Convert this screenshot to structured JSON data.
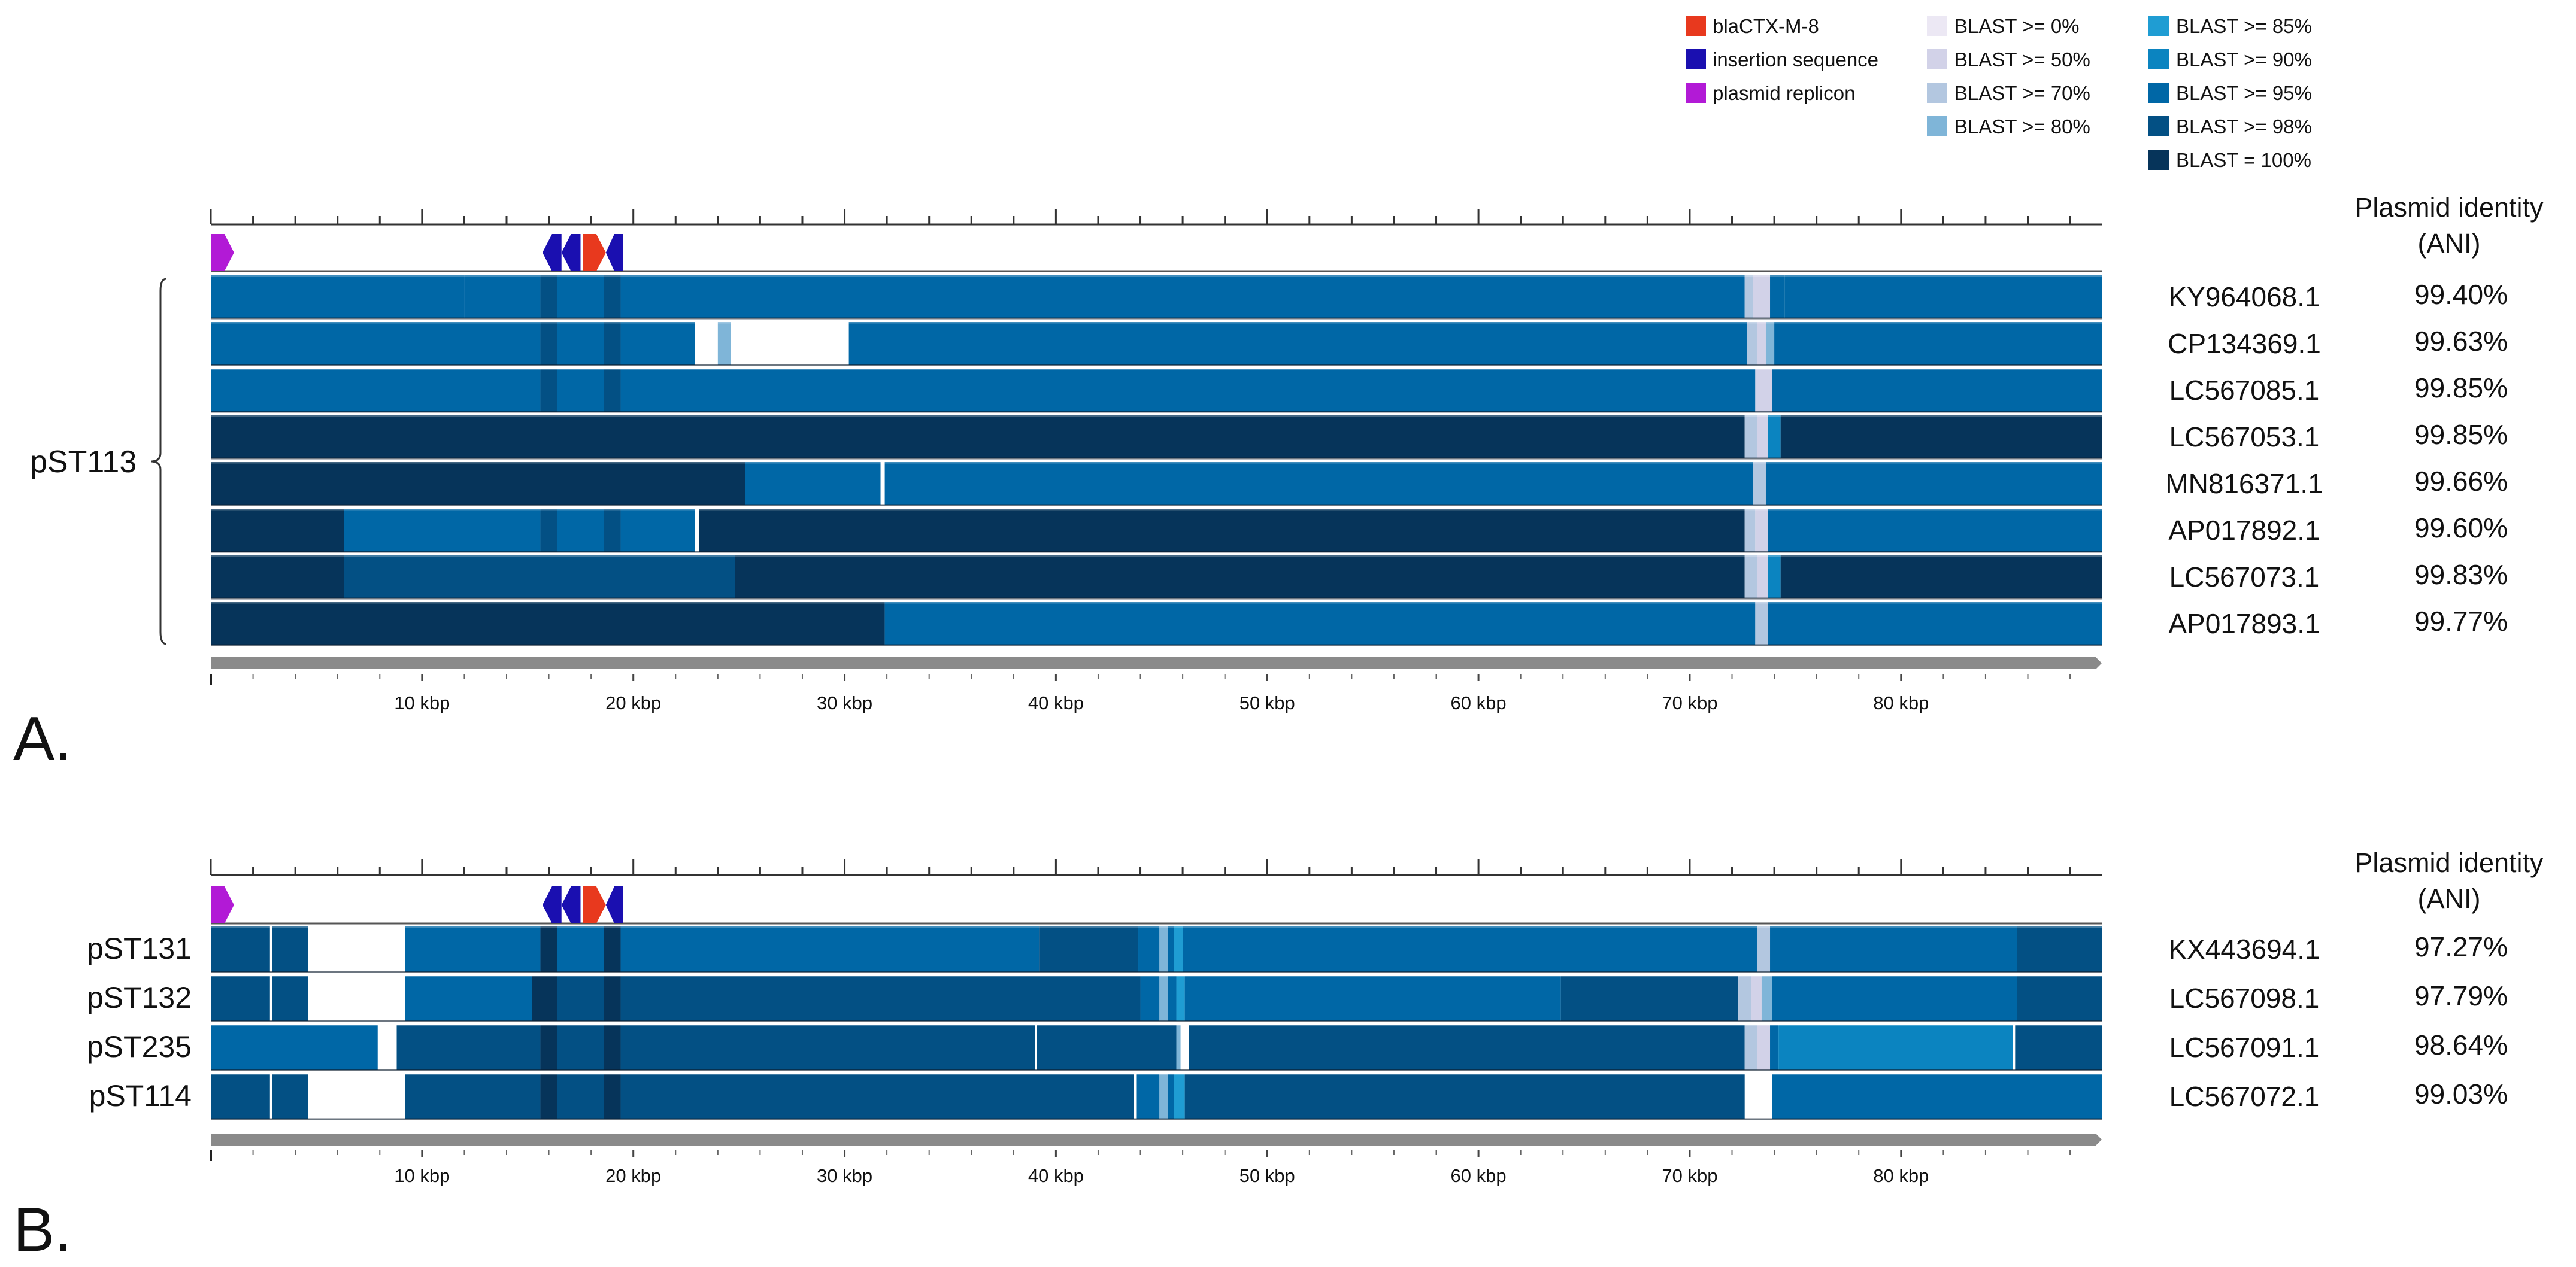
{
  "legend": {
    "features": [
      {
        "label": "blaCTX-M-8",
        "color": "#e8391e"
      },
      {
        "label": "insertion sequence",
        "color": "#1a0fb0"
      },
      {
        "label": "plasmid replicon",
        "color": "#b21ad6"
      }
    ],
    "blast": [
      {
        "label": "BLAST >= 0%",
        "color": "#ece8f4"
      },
      {
        "label": "BLAST >= 50%",
        "color": "#d2d2e8"
      },
      {
        "label": "BLAST >= 70%",
        "color": "#b3c7e0"
      },
      {
        "label": "BLAST >= 80%",
        "color": "#7fb5d8"
      },
      {
        "label": "BLAST >= 85%",
        "color": "#1f9dd3"
      },
      {
        "label": "BLAST >= 90%",
        "color": "#0b84c0"
      },
      {
        "label": "BLAST >= 95%",
        "color": "#0067a6"
      },
      {
        "label": "BLAST >= 98%",
        "color": "#035084"
      },
      {
        "label": "BLAST = 100%",
        "color": "#06345a"
      }
    ]
  },
  "axis": {
    "max_kbp": 89.5,
    "ticks": [
      {
        "kbp": 10,
        "label": "10 kbp"
      },
      {
        "kbp": 20,
        "label": "20 kbp"
      },
      {
        "kbp": 30,
        "label": "30 kbp"
      },
      {
        "kbp": 40,
        "label": "40 kbp"
      },
      {
        "kbp": 50,
        "label": "50 kbp"
      },
      {
        "kbp": 60,
        "label": "60 kbp"
      },
      {
        "kbp": 70,
        "label": "70 kbp"
      },
      {
        "kbp": 80,
        "label": "80 kbp"
      }
    ]
  },
  "reference_features": [
    {
      "type": "plasmid replicon",
      "start": 0,
      "end": 1.1,
      "dir": 1
    },
    {
      "type": "insertion sequence",
      "start": 15.7,
      "end": 16.6,
      "dir": -1
    },
    {
      "type": "insertion sequence",
      "start": 16.6,
      "end": 17.5,
      "dir": -1
    },
    {
      "type": "blaCTX-M-8",
      "start": 17.6,
      "end": 18.7,
      "dir": 1
    },
    {
      "type": "insertion sequence",
      "start": 18.7,
      "end": 19.5,
      "dir": -1
    }
  ],
  "ani_header": {
    "line1": "Plasmid identity",
    "line2": "(ANI)"
  },
  "panels": [
    {
      "letter": "A.",
      "group_label": "pST113",
      "rows": [
        {
          "accession": "KY964068.1",
          "ani": "99.40%",
          "segments": [
            [
              0,
              12,
              95
            ],
            [
              12,
              15.6,
              95
            ],
            [
              15.6,
              16.4,
              98
            ],
            [
              16.4,
              18.6,
              95
            ],
            [
              18.6,
              19.4,
              98
            ],
            [
              19.4,
              72.6,
              95
            ],
            [
              72.6,
              73,
              70
            ],
            [
              73,
              73.8,
              50
            ],
            [
              73.8,
              74.5,
              95
            ],
            [
              74.5,
              89.5,
              95
            ]
          ]
        },
        {
          "accession": "CP134369.1",
          "ani": "99.63%",
          "segments": [
            [
              0,
              15.6,
              95
            ],
            [
              15.6,
              16.4,
              98
            ],
            [
              16.4,
              18.6,
              95
            ],
            [
              18.6,
              19.4,
              98
            ],
            [
              19.4,
              22.9,
              95
            ],
            [
              24,
              24.6,
              80
            ],
            [
              30.2,
              72.7,
              95
            ],
            [
              72.7,
              73.2,
              70
            ],
            [
              73.2,
              73.6,
              50
            ],
            [
              73.6,
              74,
              80
            ],
            [
              74,
              89.5,
              95
            ]
          ]
        },
        {
          "accession": "LC567085.1",
          "ani": "99.85%",
          "segments": [
            [
              0,
              15.6,
              95
            ],
            [
              15.6,
              16.4,
              98
            ],
            [
              16.4,
              18.6,
              95
            ],
            [
              18.6,
              19.4,
              98
            ],
            [
              19.4,
              73.1,
              95
            ],
            [
              73.1,
              73.9,
              50
            ],
            [
              73.9,
              89.5,
              95
            ]
          ]
        },
        {
          "accession": "LC567053.1",
          "ani": "99.85%",
          "segments": [
            [
              0,
              72.6,
              100
            ],
            [
              72.6,
              73.2,
              70
            ],
            [
              73.2,
              73.7,
              50
            ],
            [
              73.7,
              74.3,
              90
            ],
            [
              74.3,
              89.5,
              100
            ]
          ]
        },
        {
          "accession": "MN816371.1",
          "ani": "99.66%",
          "segments": [
            [
              0,
              25.3,
              100
            ],
            [
              25.3,
              31.7,
              95
            ],
            [
              31.9,
              73,
              95
            ],
            [
              73,
              73.6,
              70
            ],
            [
              73.6,
              89.5,
              95
            ]
          ]
        },
        {
          "accession": "AP017892.1",
          "ani": "99.60%",
          "segments": [
            [
              0,
              6.3,
              100
            ],
            [
              6.3,
              15.6,
              95
            ],
            [
              15.6,
              16.4,
              98
            ],
            [
              16.4,
              18.6,
              95
            ],
            [
              18.6,
              19.4,
              98
            ],
            [
              19.4,
              22.9,
              95
            ],
            [
              23.1,
              72.6,
              100
            ],
            [
              72.6,
              73.1,
              70
            ],
            [
              73.1,
              73.7,
              50
            ],
            [
              73.7,
              89.5,
              95
            ]
          ]
        },
        {
          "accession": "LC567073.1",
          "ani": "99.83%",
          "segments": [
            [
              0,
              6.3,
              100
            ],
            [
              6.3,
              24.8,
              98
            ],
            [
              24.8,
              72.6,
              100
            ],
            [
              72.6,
              73.2,
              70
            ],
            [
              73.2,
              73.7,
              50
            ],
            [
              73.7,
              74.3,
              90
            ],
            [
              74.3,
              89.5,
              100
            ]
          ]
        },
        {
          "accession": "AP017893.1",
          "ani": "99.77%",
          "segments": [
            [
              0,
              25.3,
              100
            ],
            [
              25.3,
              31.9,
              100
            ],
            [
              31.9,
              73.1,
              95
            ],
            [
              73.1,
              73.7,
              70
            ],
            [
              73.7,
              89.5,
              95
            ]
          ]
        }
      ]
    },
    {
      "letter": "B.",
      "group_label": "",
      "rows": [
        {
          "label": "pST131",
          "accession": "KX443694.1",
          "ani": "97.27%",
          "segments": [
            [
              0,
              2.8,
              98
            ],
            [
              2.9,
              4.6,
              98
            ],
            [
              9.2,
              15.6,
              95
            ],
            [
              15.6,
              16.4,
              100
            ],
            [
              16.4,
              18.6,
              95
            ],
            [
              18.6,
              19.4,
              100
            ],
            [
              19.4,
              39.2,
              95
            ],
            [
              39.2,
              43.9,
              98
            ],
            [
              43.9,
              44.9,
              95
            ],
            [
              44.9,
              45.3,
              80
            ],
            [
              45.3,
              45.6,
              95
            ],
            [
              45.6,
              46,
              85
            ],
            [
              46,
              73.2,
              95
            ],
            [
              73.2,
              73.8,
              70
            ],
            [
              73.8,
              85.5,
              95
            ],
            [
              85.5,
              89.5,
              98
            ]
          ]
        },
        {
          "label": "pST132",
          "accession": "LC567098.1",
          "ani": "97.79%",
          "segments": [
            [
              0,
              2.8,
              98
            ],
            [
              2.9,
              4.6,
              98
            ],
            [
              9.2,
              15.2,
              95
            ],
            [
              15.2,
              16.4,
              100
            ],
            [
              16.4,
              18.6,
              98
            ],
            [
              18.6,
              19.4,
              100
            ],
            [
              19.4,
              44,
              98
            ],
            [
              44,
              44.9,
              95
            ],
            [
              44.9,
              45.3,
              80
            ],
            [
              45.3,
              45.7,
              95
            ],
            [
              45.7,
              46.1,
              85
            ],
            [
              46.1,
              63.9,
              95
            ],
            [
              63.9,
              72.3,
              98
            ],
            [
              72.3,
              72.9,
              70
            ],
            [
              72.9,
              73.4,
              50
            ],
            [
              73.4,
              73.9,
              80
            ],
            [
              73.9,
              85.5,
              95
            ],
            [
              85.5,
              89.5,
              98
            ]
          ]
        },
        {
          "label": "pST235",
          "accession": "LC567091.1",
          "ani": "98.64%",
          "segments": [
            [
              0,
              7.9,
              95
            ],
            [
              8.8,
              15.6,
              98
            ],
            [
              15.6,
              16.4,
              100
            ],
            [
              16.4,
              18.6,
              98
            ],
            [
              18.6,
              19.4,
              100
            ],
            [
              19.4,
              39,
              98
            ],
            [
              39.1,
              45.7,
              98
            ],
            [
              45.7,
              45.9,
              80
            ],
            [
              46.3,
              72.6,
              98
            ],
            [
              72.6,
              73.2,
              70
            ],
            [
              73.2,
              73.8,
              50
            ],
            [
              73.8,
              74.2,
              95
            ],
            [
              74.2,
              85.3,
              90
            ],
            [
              85.4,
              89.5,
              98
            ]
          ]
        },
        {
          "label": "pST114",
          "accession": "LC567072.1",
          "ani": "99.03%",
          "segments": [
            [
              0,
              2.8,
              98
            ],
            [
              2.9,
              4.6,
              98
            ],
            [
              9.2,
              15.6,
              98
            ],
            [
              15.6,
              16.4,
              100
            ],
            [
              16.4,
              18.6,
              98
            ],
            [
              18.6,
              19.4,
              100
            ],
            [
              19.4,
              43.7,
              98
            ],
            [
              43.8,
              44.9,
              95
            ],
            [
              44.9,
              45.3,
              80
            ],
            [
              45.3,
              45.6,
              95
            ],
            [
              45.6,
              46.1,
              85
            ],
            [
              46.1,
              72.6,
              98
            ],
            [
              73.9,
              89.5,
              95
            ]
          ]
        }
      ]
    }
  ]
}
